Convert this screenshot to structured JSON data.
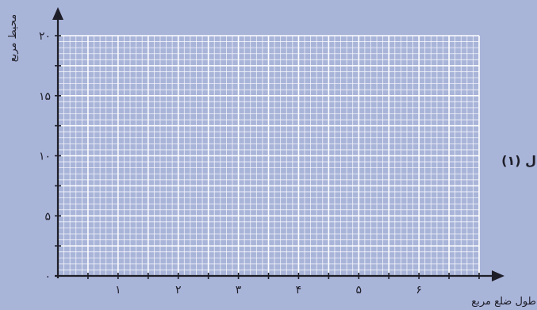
{
  "chart_data": {
    "type": "line",
    "title": "",
    "xlabel": "طول ضلع مربع",
    "ylabel": "محيط مربع",
    "xlim": [
      0,
      7
    ],
    "ylim": [
      0,
      20
    ],
    "x_ticks": [
      {
        "value": 1,
        "label": "۱"
      },
      {
        "value": 2,
        "label": "۲"
      },
      {
        "value": 3,
        "label": "۳"
      },
      {
        "value": 4,
        "label": "۴"
      },
      {
        "value": 5,
        "label": "۵"
      },
      {
        "value": 6,
        "label": "۶"
      }
    ],
    "y_ticks": [
      {
        "value": 0,
        "label": "۰"
      },
      {
        "value": 5,
        "label": "۵"
      },
      {
        "value": 10,
        "label": "۱۰"
      },
      {
        "value": 15,
        "label": "۱۵"
      },
      {
        "value": 20,
        "label": "۲۰"
      }
    ],
    "x_minor_step": 0.1,
    "y_minor_step": 0.5,
    "x_major_step": 0.5,
    "y_major_step": 2.5,
    "series": [],
    "grid": true,
    "annotation": "ل (۱)",
    "colors": {
      "background": "#a9b4d9",
      "axis": "#1e1e28",
      "grid": "#ffffff"
    }
  }
}
